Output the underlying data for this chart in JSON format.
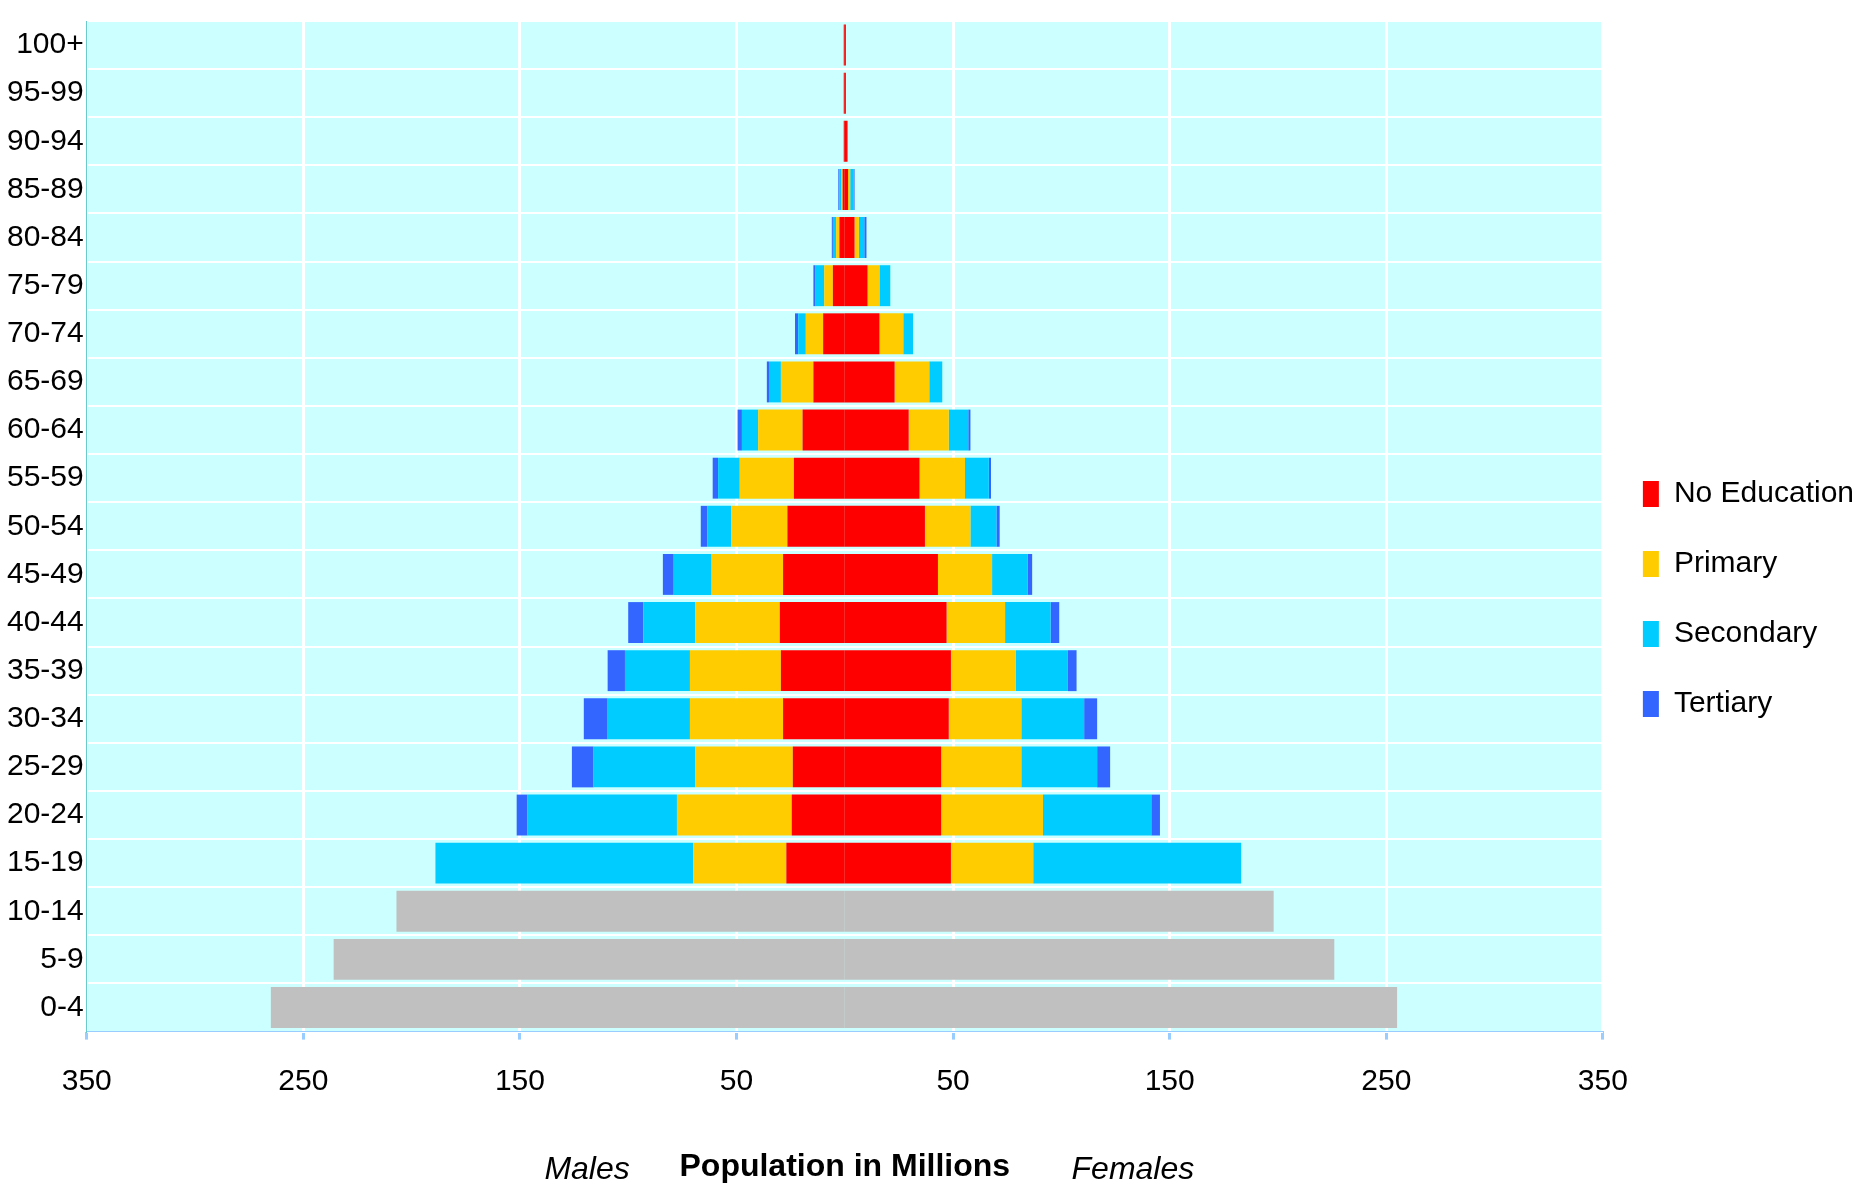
{
  "chart_data": {
    "type": "bar",
    "orientation": "horizontal",
    "stacked": true,
    "categories": [
      "100+",
      "95-99",
      "90-94",
      "85-89",
      "80-84",
      "75-79",
      "70-74",
      "65-69",
      "60-64",
      "55-59",
      "50-54",
      "45-49",
      "40-44",
      "35-39",
      "30-34",
      "25-29",
      "20-24",
      "15-19",
      "10-14",
      "5-9",
      "0-4"
    ],
    "series": [
      {
        "name": "No Education",
        "color": "#ff0000",
        "values": [
          0.5,
          0.5,
          1,
          1.5,
          4.5,
          10.5,
          16,
          23,
          29.5,
          34.5,
          37,
          43,
          47,
          49,
          48,
          44.5,
          44.5,
          49,
          null,
          null,
          null
        ]
      },
      {
        "name": "Primary",
        "color": "#ffcc00",
        "values": [
          null,
          null,
          null,
          1,
          2,
          5.5,
          11,
          16,
          18.5,
          21,
          21,
          25,
          27,
          30,
          33.5,
          37,
          47,
          38,
          null,
          null,
          null
        ]
      },
      {
        "name": "Secondary",
        "color": "#00ccff",
        "values": [
          null,
          null,
          0.5,
          1.5,
          2.5,
          5,
          4.5,
          6,
          9,
          11,
          12,
          16.5,
          21,
          24,
          29,
          35,
          50,
          96,
          null,
          null,
          null
        ]
      },
      {
        "name": "Tertiary",
        "color": "#3366ff",
        "values": [
          null,
          null,
          null,
          0.5,
          1,
          null,
          null,
          null,
          1,
          1,
          1.5,
          2,
          4,
          4,
          6,
          6,
          4,
          null,
          null,
          null,
          null
        ]
      },
      {
        "color": "#ff0000",
        "values": [
          -0.5,
          -0.5,
          -0.5,
          -1,
          -2.5,
          -5.5,
          -10,
          -14.5,
          -19.5,
          -23.5,
          -26.5,
          -28.5,
          -30,
          -29.5,
          -28.5,
          -24,
          -24.5,
          -27,
          null,
          null,
          null
        ]
      },
      {
        "color": "#ffcc00",
        "values": [
          null,
          null,
          null,
          -0.5,
          -1.5,
          -4,
          -8,
          -15,
          -20.5,
          -25,
          -26,
          -33,
          -39,
          -42,
          -43,
          -45,
          -53,
          -43,
          null,
          null,
          null
        ]
      },
      {
        "color": "#00ccff",
        "values": [
          null,
          null,
          null,
          -1,
          -1.5,
          -4,
          -3.5,
          -5.5,
          -7.5,
          -10,
          -11,
          -17.5,
          -24,
          -30,
          -38,
          -47,
          -69,
          -119,
          null,
          null,
          null
        ]
      },
      {
        "color": "#3366ff",
        "values": [
          null,
          null,
          null,
          -0.5,
          -0.5,
          -1,
          -1.5,
          -1,
          -2,
          -2.5,
          -3,
          -5,
          -7,
          -8,
          -11,
          -10,
          -5,
          null,
          null,
          null,
          null
        ]
      },
      {
        "color": "#c0c0c0",
        "values": [
          null,
          null,
          null,
          null,
          null,
          null,
          null,
          null,
          null,
          null,
          null,
          null,
          null,
          null,
          null,
          null,
          null,
          null,
          -207,
          -236,
          -265
        ]
      },
      {
        "color": "#c0c0c0",
        "values": [
          null,
          null,
          null,
          null,
          null,
          null,
          null,
          null,
          null,
          null,
          null,
          null,
          null,
          null,
          null,
          null,
          null,
          null,
          198,
          226,
          255
        ]
      }
    ],
    "xlim": [
      -350,
      350
    ],
    "xticks": [
      {
        "value": -350,
        "label": "350"
      },
      {
        "value": -250,
        "label": "250"
      },
      {
        "value": -150,
        "label": "150"
      },
      {
        "value": -50,
        "label": "50"
      },
      {
        "value": 50,
        "label": "50"
      },
      {
        "value": 150,
        "label": "150"
      },
      {
        "value": 250,
        "label": "250"
      },
      {
        "value": 350,
        "label": "350"
      }
    ],
    "xlabel": "Population in Millions",
    "annotations": [
      "Males",
      "Females"
    ],
    "grid": true,
    "legend": "right"
  }
}
